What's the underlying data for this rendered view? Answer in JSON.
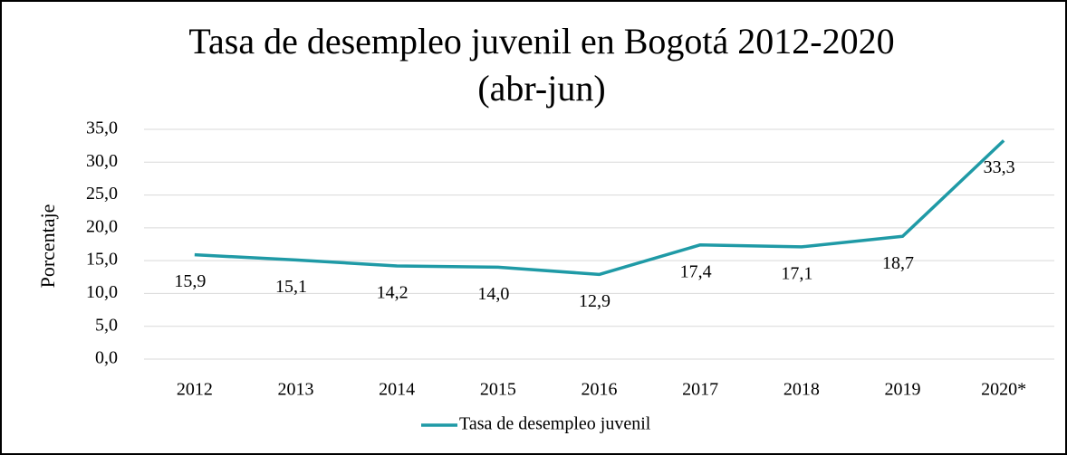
{
  "chart_data": {
    "type": "line",
    "title": "Tasa de desempleo juvenil en Bogotá 2012-2020",
    "subtitle": "(abr-jun)",
    "y_axis_label": "Porcentaje",
    "categories": [
      "2012",
      "2013",
      "2014",
      "2015",
      "2016",
      "2017",
      "2018",
      "2019",
      "2020*"
    ],
    "series": [
      {
        "name": "Tasa de desempleo juvenil",
        "color": "#1f9aa6",
        "values": [
          15.9,
          15.1,
          14.2,
          14.0,
          12.9,
          17.4,
          17.1,
          18.7,
          33.3
        ],
        "value_labels": [
          "15,9",
          "15,1",
          "14,2",
          "14,0",
          "12,9",
          "17,4",
          "17,1",
          "18,7",
          "33,3"
        ]
      }
    ],
    "ylim": [
      0,
      35
    ],
    "yticks": [
      {
        "value": 0,
        "label": "0,0"
      },
      {
        "value": 5,
        "label": "5,0"
      },
      {
        "value": 10,
        "label": "10,0"
      },
      {
        "value": 15,
        "label": "15,0"
      },
      {
        "value": 20,
        "label": "20,0"
      },
      {
        "value": 25,
        "label": "25,0"
      },
      {
        "value": 30,
        "label": "30,0"
      },
      {
        "value": 35,
        "label": "35,0"
      }
    ],
    "grid": true,
    "legend": "bottom"
  }
}
